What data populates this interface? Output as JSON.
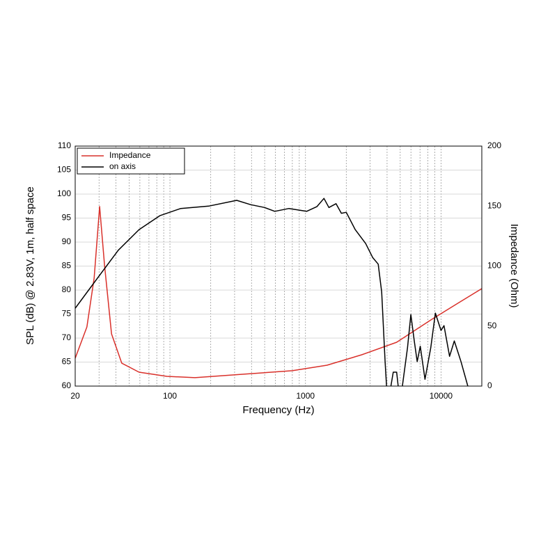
{
  "chart_data": {
    "type": "line",
    "xlabel": "Frequency (Hz)",
    "ylabel": "SPL (dB) @ 2.83V, 1m, half space",
    "y2label": "Impedance (Ohm)",
    "xscale": "log",
    "xlim": [
      20,
      20000
    ],
    "xticks": [
      20,
      100,
      1000,
      10000
    ],
    "xgrid": [
      20,
      30,
      40,
      50,
      60,
      70,
      80,
      90,
      100,
      200,
      300,
      400,
      500,
      600,
      700,
      800,
      900,
      1000,
      2000,
      3000,
      4000,
      5000,
      6000,
      7000,
      8000,
      9000,
      10000,
      20000
    ],
    "ylim": [
      60,
      110
    ],
    "yticks": [
      60,
      65,
      70,
      75,
      80,
      85,
      90,
      95,
      100,
      105,
      110
    ],
    "y2lim": [
      0,
      200
    ],
    "y2ticks": [
      0,
      50,
      100,
      150,
      200
    ],
    "grid": true,
    "legend": "upper left",
    "series": [
      {
        "name": "Impedance",
        "color": "#d9302a",
        "axis": "y2",
        "x": [
          20,
          24.4,
          27.6,
          30.3,
          32.9,
          37.1,
          44.1,
          59.2,
          95,
          153,
          350,
          799,
          1440,
          2600,
          4710,
          8400,
          13580,
          20000
        ],
        "values": [
          23.2,
          49.3,
          89.9,
          149.6,
          101,
          43.5,
          19.1,
          11.6,
          8.1,
          7,
          9.9,
          12.8,
          17.4,
          26.1,
          36.5,
          55.1,
          69.6,
          81.2
        ]
      },
      {
        "name": "on axis",
        "color": "#000000",
        "x": [
          20,
          29.2,
          41.6,
          59.2,
          84.2,
          120,
          193,
          311,
          394,
          500,
          594,
          755,
          1020,
          1216,
          1370,
          1490,
          1680,
          1840,
          2000,
          2330,
          2780,
          3130,
          3440,
          3650,
          3870,
          4040,
          4440,
          4710,
          4990,
          5660,
          5990,
          6350,
          6670,
          7030,
          7620,
          8400,
          9090,
          10000,
          10520,
          11560,
          12530,
          14040,
          15770
        ],
        "values": [
          76.2,
          82.5,
          88.3,
          92.6,
          95.5,
          97,
          97.5,
          98.7,
          97.8,
          97.2,
          96.4,
          97,
          96.4,
          97.4,
          99.1,
          97.2,
          98,
          96,
          96.2,
          92.6,
          89.7,
          86.8,
          85.4,
          79.6,
          65.1,
          56,
          62.9,
          62.9,
          56.4,
          68,
          74.9,
          69.4,
          65.1,
          68.3,
          61.4,
          68,
          75.2,
          71.6,
          72.6,
          66.2,
          69.4,
          65.1,
          60
        ]
      }
    ]
  }
}
